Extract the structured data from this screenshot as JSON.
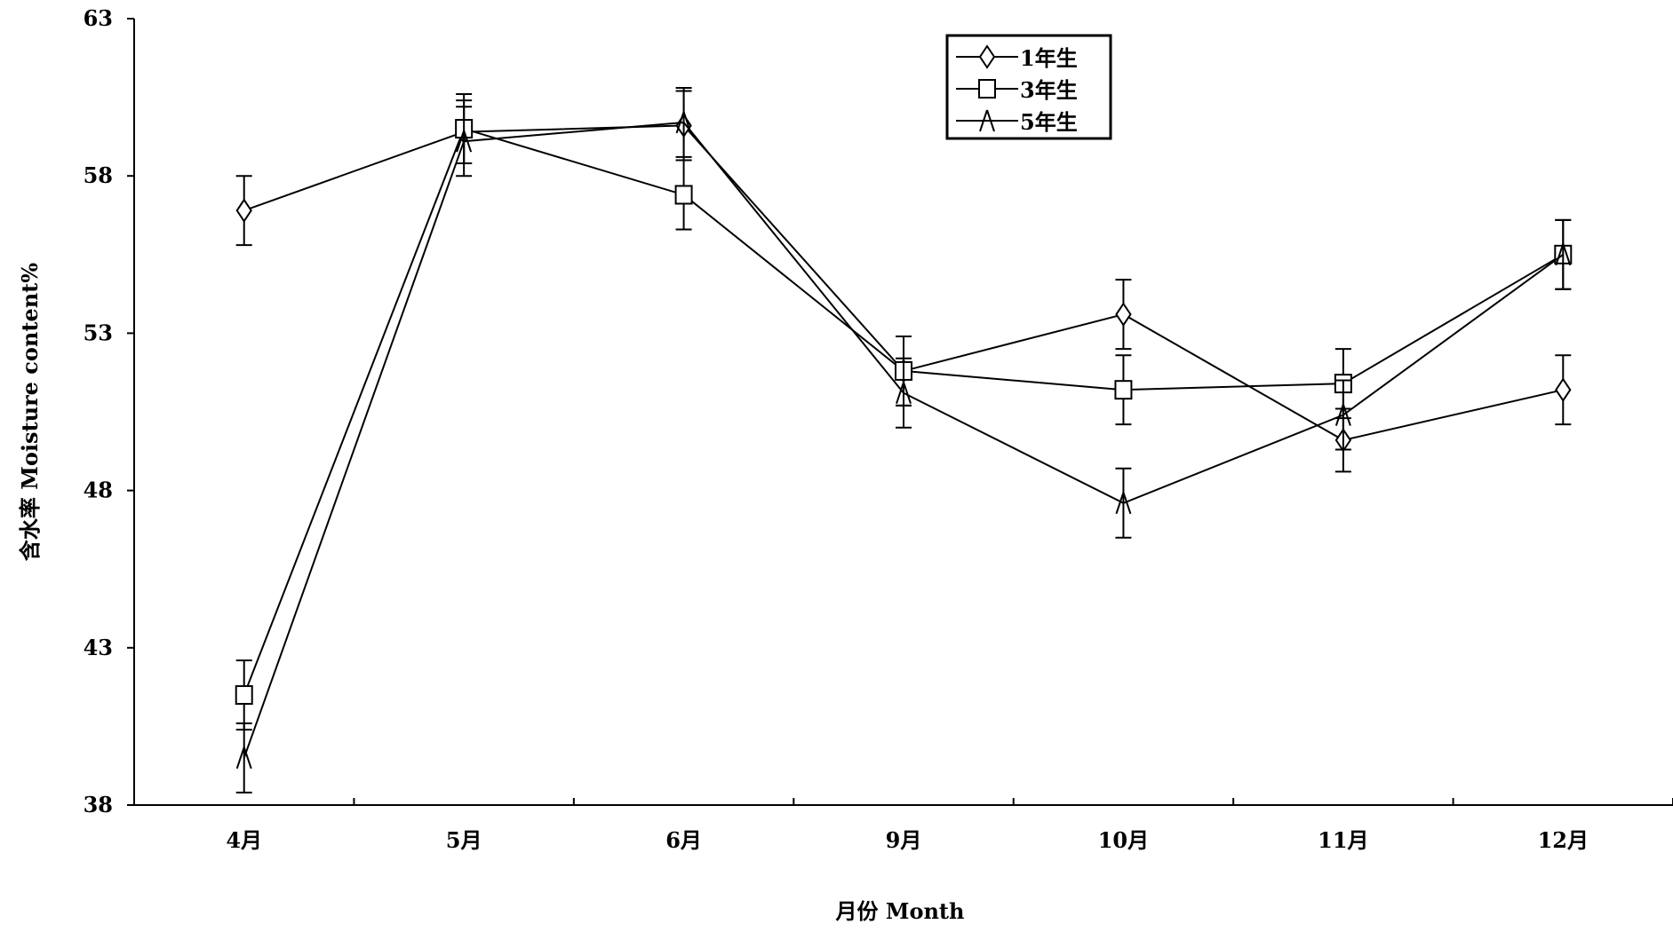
{
  "chart_data": {
    "type": "line",
    "title": "",
    "xlabel": "月份 Month",
    "ylabel": "含水率 Moisture content%",
    "categories": [
      "4月",
      "5月",
      "6月",
      "9月",
      "10月",
      "11月",
      "12月"
    ],
    "ylim": [
      38,
      63
    ],
    "yticks": [
      38,
      43,
      48,
      53,
      58,
      63
    ],
    "grid": false,
    "legend_position": "top-center",
    "series": [
      {
        "name": "1年生",
        "marker": "diamond",
        "values": [
          56.9,
          59.4,
          59.6,
          51.8,
          53.6,
          49.6,
          51.2
        ],
        "errors": [
          1.1,
          1.0,
          1.1,
          1.1,
          1.1,
          1.0,
          1.1
        ]
      },
      {
        "name": "3年生",
        "marker": "square",
        "values": [
          41.5,
          59.5,
          57.4,
          51.8,
          51.2,
          51.4,
          55.5
        ],
        "errors": [
          1.1,
          1.1,
          1.1,
          1.1,
          1.1,
          1.1,
          1.1
        ]
      },
      {
        "name": "5年生",
        "marker": "triangle",
        "values": [
          39.5,
          59.1,
          59.7,
          51.1,
          47.6,
          50.4,
          55.5
        ],
        "errors": [
          1.1,
          1.1,
          1.1,
          1.1,
          1.1,
          1.1,
          1.1
        ]
      }
    ],
    "color": "#000000"
  }
}
